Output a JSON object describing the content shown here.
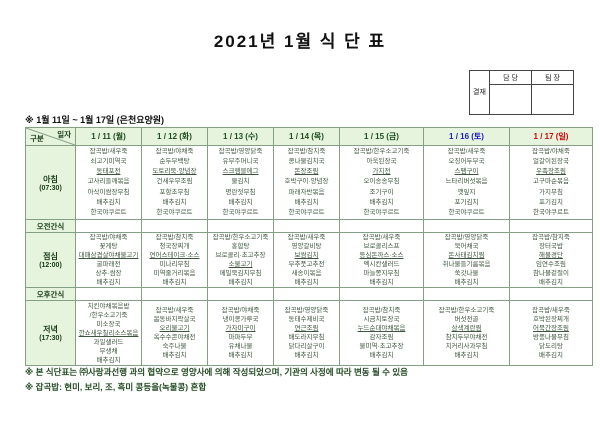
{
  "title": "2021년 1월 식 단 표",
  "approval": {
    "stamp_label": "결재",
    "columns": [
      "담 당",
      "팀 장"
    ]
  },
  "period_note": "※ 1월 11일 ~ 1월 17일 (은천요양원)",
  "table": {
    "corner": {
      "top": "일자",
      "bottom": "구분"
    },
    "dates": [
      {
        "label": "1 / 11 (월)",
        "color": "#1d4d1d"
      },
      {
        "label": "1 / 12 (화)",
        "color": "#1d4d1d"
      },
      {
        "label": "1 / 13 (수)",
        "color": "#1d4d1d"
      },
      {
        "label": "1 / 14 (목)",
        "color": "#1d4d1d"
      },
      {
        "label": "1 / 15 (금)",
        "color": "#1d4d1d"
      },
      {
        "label": "1 / 16 (토)",
        "color": "#1a1acd"
      },
      {
        "label": "1 / 17 (일)",
        "color": "#d40000"
      }
    ],
    "rows": [
      {
        "label": "아침",
        "time": "(07:30)",
        "cells": [
          [
            "잡곡밥/새우죽",
            "쇠고기미역국",
            {
              "t": "동태포전",
              "u": true
            },
            "고사리들깨볶음",
            "아삭이쌈장무침",
            "배추김치",
            "한국야쿠르트"
          ],
          [
            "잡곡밥/야채죽",
            "순두부백탕",
            {
              "t": "도토리묵·양념장",
              "u": true
            },
            "건새우무조림",
            "포항초무침",
            "배추김치",
            "한국야쿠르트"
          ],
          [
            "잡곡밥/영양닭죽",
            "유부주머니국",
            {
              "t": "스크램블에그",
              "u": true
            },
            "물김치",
            "명란젓무침",
            "배추김치",
            "한국야쿠르트"
          ],
          [
            "잡곡밥/참치죽",
            "콩나물김치국",
            {
              "t": "돈장조림",
              "u": true
            },
            "호박구이·양념장",
            "파래자반볶음",
            "배추김치",
            "한국야쿠르트"
          ],
          [
            "잡곡밥/한우소고기죽",
            "아욱된장국",
            {
              "t": "가지전",
              "u": true
            },
            "오이송송무침",
            "조기구이",
            "배추김치",
            "한국야쿠르트"
          ],
          [
            "잡곡밥/새우죽",
            "오징어두부국",
            {
              "t": "스팸구이",
              "u": true
            },
            "느타리버섯볶음",
            "깻잎지",
            "포기김치",
            "한국야쿠르트"
          ],
          [
            "잡곡밥/야채죽",
            "얼갈이된장국",
            {
              "t": "우족장조림",
              "u": true
            },
            "고구마순볶음",
            "가지무침",
            "포기김치",
            "한국야쿠르트"
          ]
        ]
      },
      {
        "label": "오전간식",
        "time": "",
        "cells": [
          [],
          [],
          [],
          [],
          [],
          [],
          []
        ]
      },
      {
        "label": "점심",
        "time": "(12:00)",
        "cells": [
          [
            "잡곡밥/야채죽",
            "꽃게탕",
            {
              "t": "대패삼겹살야채불고기",
              "u": true
            },
            "굴파래전",
            "상추·쌈장",
            "배추김치"
          ],
          [
            "잡곡밥/참치죽",
            "청국장찌개",
            {
              "t": "연어스테이크·소스",
              "u": true
            },
            "미나리무침",
            "미역줄거리볶음",
            "배추김치"
          ],
          [
            "잡곡밥/한우소고기죽",
            "홍합탕",
            "브로콜리·초고추장",
            {
              "t": "소불고기",
              "u": true
            },
            "메밀묵김치무침",
            "배추김치"
          ],
          [
            "잡곡밥/새우죽",
            "영양갈비탕",
            {
              "t": "보쌈김치",
              "u": true
            },
            "부추풋고추전",
            "새송이볶음",
            "배추김치"
          ],
          [
            "잡곡밥/새우죽",
            "브로콜리스프",
            {
              "t": "등심돈까스·소스",
              "u": true
            },
            "멕시칸샐러드",
            "마늘쫑지무침",
            "배추김치"
          ],
          [
            "잡곡밥/영양닭죽",
            "북어채국",
            {
              "t": "돈사태김치찜",
              "u": true
            },
            "취나물들기름볶음",
            "쑥갓나물",
            "배추김치"
          ],
          [
            "잡곡밥/참치죽",
            "장터국밥",
            {
              "t": "해물경단",
              "u": true
            },
            "임연수조림",
            "참나물겉절이",
            "배추김치"
          ]
        ]
      },
      {
        "label": "오후간식",
        "time": "",
        "cells": [
          [],
          [],
          [],
          [],
          [],
          [],
          []
        ]
      },
      {
        "label": "저녁",
        "time": "(17:30)",
        "cells": [
          [
            "치킨야채볶음밥",
            "/한우소고기죽",
            "미소장국",
            {
              "t": "깐쇼새우칠리소스볶음",
              "u": true
            },
            "과일샐러드",
            "무생채",
            "배추김치"
          ],
          [
            "잡곡밥/새우죽",
            "봄동바지락살국",
            {
              "t": "오리불고기",
              "u": true
            },
            "옥수수콘야채전",
            "숙주나물",
            "배추김치"
          ],
          [
            "잡곡밥/야채죽",
            "냉이콩가루국",
            {
              "t": "가자미구이",
              "u": true
            },
            "마파두부",
            "유채나물",
            "배추김치"
          ],
          [
            "잡곡밥/영양닭죽",
            "동태수제비국",
            {
              "t": "연근조림",
              "u": true
            },
            "배도라지무침",
            "닭다리살구이",
            "배추김치"
          ],
          [
            "잡곡밥/참치죽",
            "시금치토장국",
            {
              "t": "누드순대야채볶음",
              "u": true
            },
            "감자조림",
            "물미역·초고추장",
            "배추김치"
          ],
          [
            "잡곡밥/한우소고기죽",
            "버섯전골",
            {
              "t": "삼색계란찜",
              "u": true
            },
            "참치두부야채전",
            "치커리사과무침",
            "배추김치"
          ],
          [
            "잡곡밥/새우죽",
            "호박된장찌개",
            {
              "t": "어묵간장조림",
              "u": true
            },
            "방풍나물무침",
            "닭도리탕",
            "배추김치"
          ]
        ]
      }
    ]
  },
  "footnotes": [
    "※ 본 식단표는 ㈜사랑과선행 과의 협약으로 영양사에 의해 작성되었으며, 기관의 사정에 따라 변동 될 수 있음",
    "※ 잡곡밥: 현미, 보리, 조, 흑미 콩등을(녹물콩) 혼합"
  ]
}
